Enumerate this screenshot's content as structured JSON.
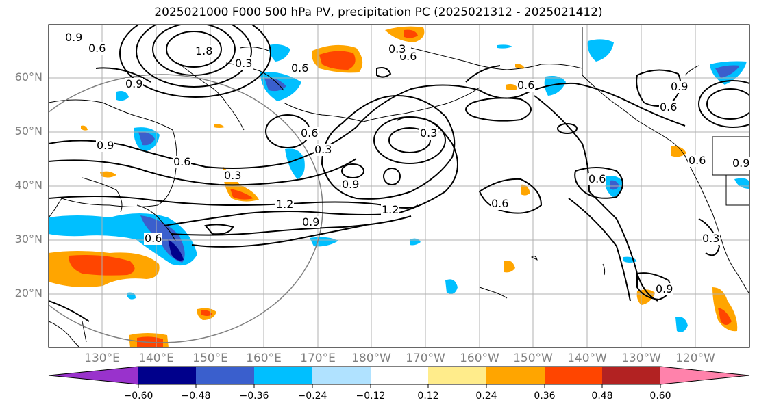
{
  "title": "2025021000 F000 500 hPa PV, precipitation PC (2025021312 - 2025021412)",
  "lat_labels": [
    "60°N",
    "50°N",
    "40°N",
    "30°N",
    "20°N"
  ],
  "lon_labels": [
    "130°E",
    "140°E",
    "150°E",
    "160°E",
    "170°E",
    "180°W",
    "170°W",
    "160°W",
    "150°W",
    "140°W",
    "130°W",
    "120°W"
  ],
  "colorbar": {
    "ticks": [
      "−0.60",
      "−0.48",
      "−0.36",
      "−0.24",
      "−0.12",
      "0.12",
      "0.24",
      "0.36",
      "0.48",
      "0.60"
    ],
    "colors": [
      "#9932cc",
      "#00008b",
      "#3a5fcd",
      "#00bfff",
      "#b0e2ff",
      "#ffffff",
      "#ffec8b",
      "#ffa500",
      "#ff4500",
      "#b22222",
      "#ff82ab"
    ]
  },
  "contour_labels": [
    "0.9",
    "0.6",
    "1.8",
    "0.3",
    "0.6",
    "0.9",
    "0.6",
    "0.3",
    "0.6",
    "0.3",
    "0.9",
    "0.6",
    "0.3",
    "0.9",
    "0.6",
    "1.2",
    "1.2",
    "0.9",
    "0.6",
    "0.6",
    "0.9",
    "0.6",
    "0.9",
    "0.6",
    "0.9",
    "0.3",
    "0.3",
    "0.6"
  ]
}
